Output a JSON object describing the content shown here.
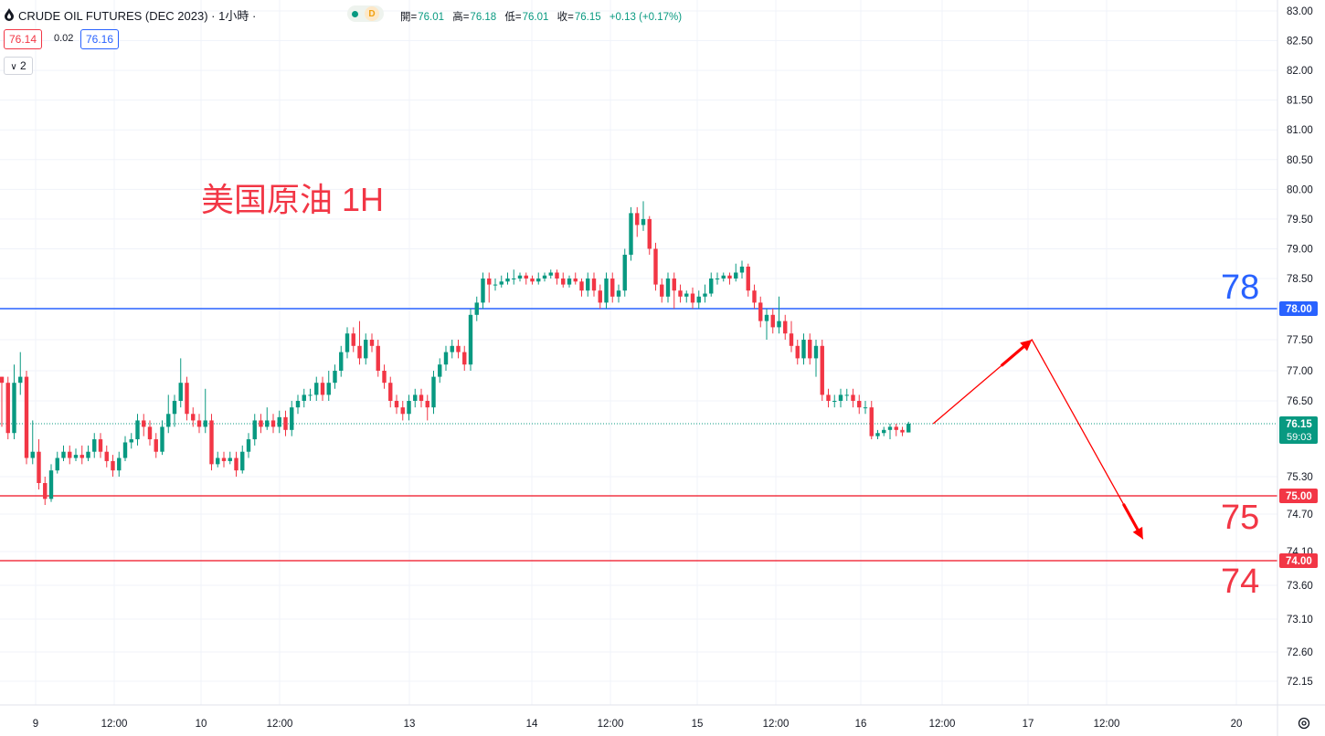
{
  "header": {
    "symbol_title": "CRUDE OIL FUTURES (DEC 2023) · 1小時 ·",
    "data_source_badge": "D",
    "ohlc": {
      "open_label": "開=",
      "open": "76.01",
      "high_label": "高=",
      "high": "76.18",
      "low_label": "低=",
      "low": "76.01",
      "close_label": "收=",
      "close": "76.15",
      "change": "+0.13 (+0.17%)"
    },
    "sell_price": "76.14",
    "spread": "0.02",
    "buy_price": "76.16",
    "indicators_toggle": "2"
  },
  "annotations": {
    "title_note": "美国原油 1H",
    "level_78": "78",
    "level_75": "75",
    "level_74": "74"
  },
  "colors": {
    "up": "#089981",
    "down": "#f23645",
    "resistance_line": "#2962ff",
    "support_line": "#f23645",
    "arrow": "#ff0000",
    "grid": "#f0f3fa"
  },
  "chart_data": {
    "type": "candlestick",
    "timeframe": "1H",
    "y_ticks": [
      "83.00",
      "82.50",
      "82.00",
      "81.50",
      "81.00",
      "80.50",
      "80.00",
      "79.50",
      "79.00",
      "78.50",
      "77.50",
      "77.00",
      "76.50",
      "75.30",
      "74.70",
      "74.10",
      "73.60",
      "73.10",
      "72.60",
      "72.15"
    ],
    "x_ticks": [
      "9",
      "12:00",
      "10",
      "12:00",
      "13",
      "14",
      "12:00",
      "15",
      "12:00",
      "16",
      "12:00",
      "17",
      "12:00",
      "20"
    ],
    "price_labels": [
      {
        "price": 78.0,
        "text": "78.00",
        "color": "#2962ff"
      },
      {
        "price": 75.0,
        "text": "75.00",
        "color": "#f23645"
      },
      {
        "price": 74.0,
        "text": "74.00",
        "color": "#f23645"
      }
    ],
    "last_price": {
      "price": 76.15,
      "text": "76.15",
      "countdown": "59:03"
    },
    "horizontal_lines": [
      {
        "price": 78.0,
        "color": "#2962ff"
      },
      {
        "price": 75.0,
        "color": "#f23645"
      },
      {
        "price": 74.0,
        "color": "#f23645"
      }
    ],
    "projection_path": [
      {
        "candle": 151,
        "price": 76.15
      },
      {
        "candle": 167,
        "price": 77.5
      },
      {
        "candle": 185,
        "price": 74.3
      }
    ],
    "candles": [
      [
        76.9,
        76.8,
        76.9,
        76.1
      ],
      [
        76.8,
        76.0,
        76.9,
        75.9
      ],
      [
        76.0,
        76.8,
        77.1,
        75.9
      ],
      [
        76.8,
        76.9,
        77.3,
        76.6
      ],
      [
        76.9,
        75.6,
        77.0,
        75.5
      ],
      [
        75.6,
        75.7,
        76.2,
        75.5
      ],
      [
        75.7,
        75.2,
        75.9,
        75.1
      ],
      [
        75.2,
        74.95,
        75.3,
        74.85
      ],
      [
        74.95,
        75.4,
        75.5,
        74.9
      ],
      [
        75.4,
        75.6,
        75.7,
        75.35
      ],
      [
        75.6,
        75.7,
        75.8,
        75.55
      ],
      [
        75.7,
        75.6,
        75.8,
        75.5
      ],
      [
        75.6,
        75.65,
        75.75,
        75.55
      ],
      [
        75.65,
        75.6,
        75.8,
        75.5
      ],
      [
        75.6,
        75.7,
        75.8,
        75.55
      ],
      [
        75.7,
        75.9,
        76.0,
        75.6
      ],
      [
        75.9,
        75.7,
        76.0,
        75.6
      ],
      [
        75.7,
        75.55,
        75.8,
        75.45
      ],
      [
        75.55,
        75.4,
        75.65,
        75.3
      ],
      [
        75.4,
        75.6,
        75.7,
        75.3
      ],
      [
        75.6,
        75.85,
        75.95,
        75.55
      ],
      [
        75.85,
        75.9,
        76.0,
        75.75
      ],
      [
        75.9,
        76.2,
        76.3,
        75.8
      ],
      [
        76.2,
        76.1,
        76.3,
        75.95
      ],
      [
        76.1,
        75.9,
        76.2,
        75.8
      ],
      [
        75.9,
        75.7,
        76.0,
        75.6
      ],
      [
        75.7,
        76.1,
        76.2,
        75.65
      ],
      [
        76.1,
        76.3,
        76.6,
        76.0
      ],
      [
        76.3,
        76.5,
        76.6,
        76.1
      ],
      [
        76.5,
        76.8,
        77.2,
        76.4
      ],
      [
        76.8,
        76.3,
        76.9,
        76.2
      ],
      [
        76.3,
        76.2,
        76.4,
        76.1
      ],
      [
        76.2,
        76.1,
        76.3,
        76.0
      ],
      [
        76.1,
        76.2,
        76.7,
        76.0
      ],
      [
        76.2,
        75.5,
        76.3,
        75.4
      ],
      [
        75.5,
        75.6,
        75.7,
        75.45
      ],
      [
        75.6,
        75.55,
        75.7,
        75.45
      ],
      [
        75.55,
        75.6,
        75.7,
        75.5
      ],
      [
        75.6,
        75.4,
        75.7,
        75.3
      ],
      [
        75.4,
        75.7,
        75.8,
        75.35
      ],
      [
        75.7,
        75.9,
        76.0,
        75.6
      ],
      [
        75.9,
        76.2,
        76.3,
        75.8
      ],
      [
        76.2,
        76.1,
        76.3,
        76.0
      ],
      [
        76.1,
        76.2,
        76.4,
        76.05
      ],
      [
        76.2,
        76.1,
        76.3,
        76.0
      ],
      [
        76.1,
        76.25,
        76.35,
        76.0
      ],
      [
        76.25,
        76.05,
        76.35,
        75.95
      ],
      [
        76.05,
        76.4,
        76.5,
        75.95
      ],
      [
        76.4,
        76.5,
        76.6,
        76.3
      ],
      [
        76.5,
        76.6,
        76.7,
        76.4
      ],
      [
        76.6,
        76.6,
        76.7,
        76.5
      ],
      [
        76.6,
        76.8,
        76.9,
        76.5
      ],
      [
        76.8,
        76.6,
        76.9,
        76.5
      ],
      [
        76.6,
        76.8,
        77.0,
        76.5
      ],
      [
        76.8,
        77.0,
        77.1,
        76.7
      ],
      [
        77.0,
        77.3,
        77.4,
        76.9
      ],
      [
        77.3,
        77.6,
        77.7,
        77.2
      ],
      [
        77.6,
        77.4,
        77.7,
        77.3
      ],
      [
        77.4,
        77.2,
        77.8,
        77.1
      ],
      [
        77.2,
        77.5,
        77.6,
        77.1
      ],
      [
        77.5,
        77.4,
        77.6,
        77.3
      ],
      [
        77.4,
        77.0,
        77.5,
        76.9
      ],
      [
        77.0,
        76.8,
        77.1,
        76.7
      ],
      [
        76.8,
        76.5,
        76.9,
        76.4
      ],
      [
        76.5,
        76.4,
        76.6,
        76.3
      ],
      [
        76.4,
        76.3,
        76.5,
        76.2
      ],
      [
        76.3,
        76.5,
        76.6,
        76.2
      ],
      [
        76.5,
        76.6,
        76.7,
        76.4
      ],
      [
        76.6,
        76.5,
        76.7,
        76.4
      ],
      [
        76.5,
        76.4,
        76.6,
        76.2
      ],
      [
        76.4,
        76.9,
        77.0,
        76.3
      ],
      [
        76.9,
        77.1,
        77.2,
        76.8
      ],
      [
        77.1,
        77.3,
        77.4,
        77.0
      ],
      [
        77.3,
        77.4,
        77.5,
        77.2
      ],
      [
        77.4,
        77.3,
        77.5,
        77.2
      ],
      [
        77.3,
        77.1,
        77.4,
        77.0
      ],
      [
        77.1,
        77.9,
        78.0,
        77.0
      ],
      [
        77.9,
        78.1,
        78.2,
        77.8
      ],
      [
        78.1,
        78.5,
        78.6,
        78.0
      ],
      [
        78.5,
        78.4,
        78.6,
        78.1
      ],
      [
        78.4,
        78.4,
        78.5,
        78.3
      ],
      [
        78.4,
        78.45,
        78.55,
        78.35
      ],
      [
        78.45,
        78.5,
        78.6,
        78.4
      ],
      [
        78.5,
        78.5,
        78.65,
        78.4
      ],
      [
        78.5,
        78.55,
        78.6,
        78.45
      ],
      [
        78.55,
        78.5,
        78.6,
        78.4
      ],
      [
        78.5,
        78.45,
        78.55,
        78.4
      ],
      [
        78.45,
        78.5,
        78.6,
        78.4
      ],
      [
        78.5,
        78.55,
        78.6,
        78.45
      ],
      [
        78.55,
        78.6,
        78.65,
        78.5
      ],
      [
        78.6,
        78.5,
        78.65,
        78.4
      ],
      [
        78.5,
        78.4,
        78.6,
        78.35
      ],
      [
        78.4,
        78.5,
        78.55,
        78.35
      ],
      [
        78.5,
        78.45,
        78.6,
        78.4
      ],
      [
        78.45,
        78.3,
        78.5,
        78.2
      ],
      [
        78.3,
        78.5,
        78.6,
        78.2
      ],
      [
        78.5,
        78.3,
        78.6,
        78.2
      ],
      [
        78.3,
        78.1,
        78.4,
        78.0
      ],
      [
        78.1,
        78.5,
        78.6,
        78.0
      ],
      [
        78.5,
        78.2,
        78.6,
        78.1
      ],
      [
        78.2,
        78.3,
        78.4,
        78.1
      ],
      [
        78.3,
        78.9,
        79.0,
        78.2
      ],
      [
        78.9,
        79.6,
        79.7,
        78.8
      ],
      [
        79.6,
        79.4,
        79.7,
        79.2
      ],
      [
        79.4,
        79.5,
        79.8,
        79.3
      ],
      [
        79.5,
        79.0,
        79.55,
        78.9
      ],
      [
        79.0,
        78.4,
        79.1,
        78.3
      ],
      [
        78.4,
        78.2,
        78.5,
        78.1
      ],
      [
        78.2,
        78.5,
        78.6,
        78.1
      ],
      [
        78.5,
        78.3,
        78.6,
        78.0
      ],
      [
        78.3,
        78.2,
        78.4,
        78.1
      ],
      [
        78.2,
        78.25,
        78.3,
        78.1
      ],
      [
        78.25,
        78.1,
        78.35,
        78.0
      ],
      [
        78.1,
        78.2,
        78.3,
        78.0
      ],
      [
        78.2,
        78.25,
        78.4,
        78.1
      ],
      [
        78.25,
        78.5,
        78.6,
        78.2
      ],
      [
        78.5,
        78.5,
        78.6,
        78.4
      ],
      [
        78.5,
        78.55,
        78.6,
        78.45
      ],
      [
        78.55,
        78.5,
        78.6,
        78.4
      ],
      [
        78.5,
        78.6,
        78.75,
        78.45
      ],
      [
        78.6,
        78.7,
        78.8,
        78.5
      ],
      [
        78.7,
        78.3,
        78.75,
        78.2
      ],
      [
        78.3,
        78.1,
        78.4,
        78.0
      ],
      [
        78.1,
        77.8,
        78.2,
        77.7
      ],
      [
        77.8,
        77.9,
        78.0,
        77.5
      ],
      [
        77.9,
        77.7,
        78.0,
        77.6
      ],
      [
        77.7,
        77.8,
        78.2,
        77.6
      ],
      [
        77.8,
        77.6,
        77.9,
        77.5
      ],
      [
        77.6,
        77.4,
        77.8,
        77.3
      ],
      [
        77.4,
        77.2,
        77.5,
        77.1
      ],
      [
        77.2,
        77.5,
        77.6,
        77.1
      ],
      [
        77.5,
        77.2,
        77.6,
        77.1
      ],
      [
        77.2,
        77.4,
        77.5,
        76.9
      ],
      [
        77.4,
        76.6,
        77.5,
        76.5
      ],
      [
        76.6,
        76.5,
        76.7,
        76.4
      ],
      [
        76.5,
        76.5,
        76.6,
        76.4
      ],
      [
        76.5,
        76.6,
        76.7,
        76.4
      ],
      [
        76.6,
        76.6,
        76.7,
        76.5
      ],
      [
        76.6,
        76.5,
        76.7,
        76.4
      ],
      [
        76.5,
        76.4,
        76.6,
        76.3
      ],
      [
        76.4,
        76.4,
        76.5,
        76.3
      ],
      [
        76.4,
        75.95,
        76.5,
        75.9
      ],
      [
        75.95,
        76.0,
        76.05,
        75.9
      ],
      [
        76.0,
        76.05,
        76.1,
        75.95
      ],
      [
        76.05,
        76.1,
        76.15,
        75.9
      ],
      [
        76.1,
        76.05,
        76.15,
        75.95
      ],
      [
        76.05,
        76.01,
        76.1,
        75.95
      ],
      [
        76.01,
        76.15,
        76.18,
        76.01
      ]
    ]
  }
}
